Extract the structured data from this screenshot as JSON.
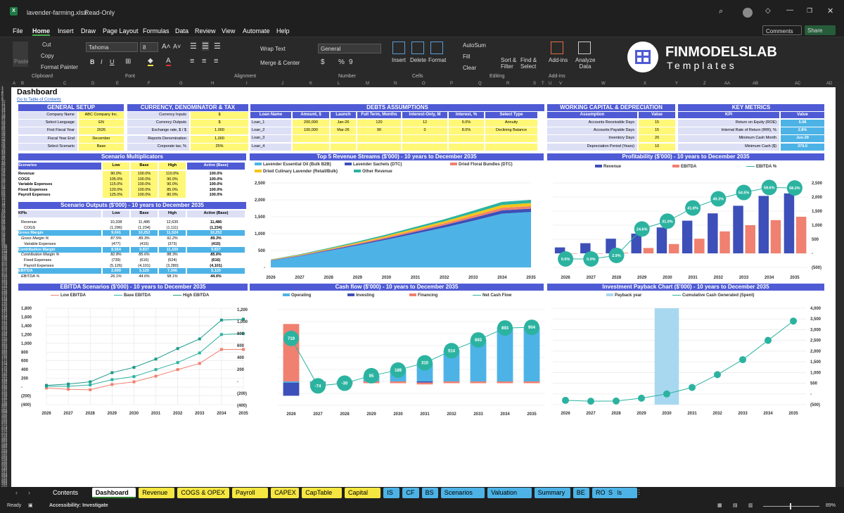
{
  "window": {
    "filename": "lavender-farming.xlsx",
    "mode": "Read-Only",
    "comments": "Comments",
    "share": "Share"
  },
  "menu": [
    "File",
    "Home",
    "Insert",
    "Draw",
    "Page Layout",
    "Formulas",
    "Data",
    "Review",
    "View",
    "Automate",
    "Help"
  ],
  "ribbon": {
    "cut": "Cut",
    "copy": "Copy",
    "format_painter": "Format Painter",
    "paste": "Paste",
    "clipboard": "Clipboard",
    "font_name": "Tahoma",
    "font_size": "8",
    "font": "Font",
    "wrap": "Wrap Text",
    "merge": "Merge & Center",
    "alignment": "Alignment",
    "number_format": "General",
    "number": "Number",
    "insert": "Insert",
    "delete": "Delete",
    "format": "Format",
    "cells": "Cells",
    "autosum": "AutoSum",
    "fill": "Fill",
    "clear": "Clear",
    "sort": "Sort & Filter",
    "find": "Find & Select",
    "editing": "Editing",
    "addins": "Add-ins",
    "addins_group": "Add-ins",
    "analyze": "Analyze Data",
    "brand": "FINMODELSLAB",
    "brand_sub": "Templates"
  },
  "columns": [
    "A",
    "B",
    "C",
    "D",
    "E",
    "F",
    "G",
    "H",
    "I",
    "J",
    "K",
    "L",
    "M",
    "N",
    "O",
    "P",
    "Q",
    "R",
    "S",
    "T",
    "U",
    "V",
    "W",
    "X",
    "Y",
    "Z",
    "AA",
    "AB",
    "AC",
    "AD"
  ],
  "sheet": {
    "title": "Dashboard",
    "toc_link": "Go to Table of Contents",
    "general": {
      "title": "GENERAL SETUP",
      "rows": [
        [
          "Company Name",
          "ABC Company Inc."
        ],
        [
          "Select Language",
          "EN"
        ],
        [
          "First Fiscal Year",
          "2026"
        ],
        [
          "Fiscal Year End",
          "December"
        ],
        [
          "Select Scenario",
          "Base"
        ]
      ]
    },
    "currency": {
      "title": "CURRENCY, DENOMINATOR & TAX",
      "rows": [
        [
          "Currency Inputs",
          "$"
        ],
        [
          "Currency Outputs",
          "$"
        ],
        [
          "Exchange rate, $ / $",
          "1.000"
        ],
        [
          "Reports Denomination",
          "1,000"
        ],
        [
          "Corporate tax, %",
          "25%"
        ]
      ]
    },
    "debts": {
      "title": "DEBTS ASSUMPTIONS",
      "headers": [
        "Loan Name",
        "Amount, $",
        "Launch",
        "Full Term, Months",
        "Interest-Only, M",
        "Interest, %",
        "Select Type"
      ],
      "rows": [
        [
          "Loan_1",
          "200,000",
          "Jan-26",
          "120",
          "12",
          "6.0%",
          "Annuity"
        ],
        [
          "Loan_2",
          "100,000",
          "Mar-26",
          "90",
          "0",
          "8.0%",
          "Declining Balance"
        ],
        [
          "Loan_3",
          "",
          "",
          "",
          "",
          "",
          ""
        ],
        [
          "Loan_4",
          "",
          "",
          "",
          "",
          "",
          ""
        ]
      ]
    },
    "wc": {
      "title": "WORKING CAPITAL & DEPRECIATION",
      "headers": [
        "Assumption",
        "Value"
      ],
      "rows": [
        [
          "Accounts Receivable Days",
          "15"
        ],
        [
          "Accounts Payable Days",
          "15"
        ],
        [
          "Inventory Days",
          "20"
        ],
        [
          "Depreciation Period (Years)",
          "10"
        ]
      ]
    },
    "kpi": {
      "title": "KEY METRICS",
      "headers": [
        "KPI",
        "Value"
      ],
      "rows": [
        [
          "Return on Equity (ROE)",
          "5.08"
        ],
        [
          "Internal Rate of Return (IRR), %",
          "2.8%"
        ],
        [
          "Minimum Cash Month",
          "Jun-29"
        ],
        [
          "Minimum Cash ($)",
          "379.0"
        ]
      ]
    },
    "multipliers": {
      "title": "Scenario Multiplicators",
      "headers": [
        "Scenarios",
        "Low",
        "Base",
        "High",
        "Active (Base)"
      ],
      "rows": [
        [
          "Revenue",
          "90.0%",
          "100.0%",
          "110.0%",
          "100.0%"
        ],
        [
          "COGS",
          "105.0%",
          "100.0%",
          "90.0%",
          "100.0%"
        ],
        [
          "Variable Expenses",
          "115.0%",
          "100.0%",
          "90.0%",
          "100.0%"
        ],
        [
          "Fixed Expenses",
          "120.0%",
          "100.0%",
          "85.0%",
          "100.0%"
        ],
        [
          "Payroll Expenses",
          "125.0%",
          "100.0%",
          "80.0%",
          "100.0%"
        ]
      ]
    },
    "outputs": {
      "title": "Scenario Outputs ($'000) - 10 years to December 2035",
      "headers": [
        "KPIs",
        "Low",
        "Base",
        "High",
        "Active (Base)"
      ],
      "rows": [
        [
          "Revenue",
          "10,338",
          "11,486",
          "12,635",
          "11,486"
        ],
        [
          "COGS",
          "(1,296)",
          "(1,234)",
          "(1,111)",
          "(1,234)"
        ],
        [
          "Gross Margin",
          "9,041",
          "10,252",
          "11,524",
          "10,252"
        ],
        [
          "Gross Margin %",
          "87.5%",
          "89.3%",
          "91.2%",
          "89.3%"
        ],
        [
          "Variable Expenses",
          "(477)",
          "(415)",
          "(373)",
          "(415)"
        ],
        [
          "Contribution Margin",
          "8,564",
          "9,837",
          "11,150",
          "9,837"
        ],
        [
          "Contribution Margin %",
          "82.8%",
          "85.6%",
          "88.3%",
          "85.6%"
        ],
        [
          "Fixed Expenses",
          "(739)",
          "(616)",
          "(524)",
          "(616)"
        ],
        [
          "Payroll Expenses",
          "(5,126)",
          "(4,101)",
          "(3,280)",
          "(4,101)"
        ],
        [
          "EBITDA",
          "2,699",
          "5,120",
          "7,346",
          "5,120"
        ],
        [
          "EBITDA %",
          "26.1%",
          "44.6%",
          "58.1%",
          "44.6%"
        ]
      ]
    }
  },
  "chart_data": [
    {
      "type": "area",
      "title": "Top 5 Revenue Streams ($'000) - 10 years to December 2035",
      "x": [
        "2026",
        "2027",
        "2028",
        "2029",
        "2030",
        "2031",
        "2032",
        "2033",
        "2034",
        "2035"
      ],
      "ylim": [
        0,
        2500
      ],
      "yticks": [
        "2,500",
        "2,000",
        "1,500",
        "1,000",
        "500",
        "-"
      ],
      "legend": [
        "Lavender Essential Oil (Bulk B2B)",
        "Lavender Sachets (DTC)",
        "Dried Floral Bundles (DTC)",
        "Dried Culinary Lavender (Retail/Bulk)",
        "Other Revenue"
      ],
      "colors": [
        "#4db3e6",
        "#3d4fb8",
        "#f08070",
        "#f5c518",
        "#2bb3a0"
      ],
      "series": [
        {
          "name": "Lavender Essential Oil (Bulk B2B)",
          "values": [
            200,
            330,
            490,
            650,
            820,
            1000,
            1180,
            1380,
            1590,
            1640
          ]
        },
        {
          "name": "Lavender Sachets (DTC)",
          "values": [
            10,
            15,
            20,
            30,
            40,
            55,
            70,
            85,
            100,
            100
          ]
        },
        {
          "name": "Dried Floral Bundles (DTC)",
          "values": [
            8,
            12,
            18,
            25,
            35,
            45,
            55,
            65,
            75,
            75
          ]
        },
        {
          "name": "Dried Culinary Lavender (Retail/Bulk)",
          "values": [
            10,
            15,
            22,
            30,
            40,
            50,
            60,
            75,
            85,
            90
          ]
        },
        {
          "name": "Other Revenue",
          "values": [
            10,
            15,
            22,
            30,
            40,
            50,
            60,
            75,
            90,
            95
          ]
        }
      ]
    },
    {
      "type": "bar",
      "title": "Profitability ($'000) - 10 years to December 2035",
      "x": [
        "2026",
        "2027",
        "2028",
        "2029",
        "2030",
        "2031",
        "2032",
        "2033",
        "2034",
        "2035"
      ],
      "ylim": [
        -500,
        2500
      ],
      "yticks": [
        "2,500",
        "2,000",
        "1,500",
        "1,000",
        "500",
        "-",
        "(500)"
      ],
      "legend": [
        "Revenue",
        "EBITDA",
        "EBITDA %"
      ],
      "colors": [
        "#3d4fb8",
        "#f08070",
        "#2bb3a0"
      ],
      "series": [
        {
          "name": "Revenue",
          "values": [
            210,
            360,
            520,
            700,
            920,
            1160,
            1420,
            1690,
            2040,
            2130
          ]
        },
        {
          "name": "EBITDA",
          "values": [
            0,
            0,
            20,
            190,
            330,
            520,
            780,
            1000,
            1180,
            1300
          ]
        },
        {
          "name": "EBITDA %",
          "values": [
            0.0,
            0.0,
            2.9,
            24.6,
            31.0,
            41.8,
            49.3,
            54.5,
            58.6,
            58.2
          ],
          "labels": [
            "0.0%",
            "0.0%",
            "2.9%",
            "24.6%",
            "31.0%",
            "41.8%",
            "49.3%",
            "54.5%",
            "58.6%",
            "58.2%"
          ]
        }
      ]
    },
    {
      "type": "line",
      "title": "EBITDA Scenarios ($'000) - 10 years to December 2035",
      "x": [
        "2026",
        "2027",
        "2028",
        "2029",
        "2030",
        "2031",
        "2032",
        "2033",
        "2034",
        "2035"
      ],
      "ylim": [
        -400,
        1800
      ],
      "yticks": [
        "1,800",
        "1,600",
        "1,400",
        "1,200",
        "1,000",
        "800",
        "600",
        "400",
        "200",
        "-",
        "(200)",
        "(400)"
      ],
      "legend": [
        "Low EBITDA",
        "Base EBITDA",
        "High EBITDA"
      ],
      "colors": [
        "#f08070",
        "#2bb3a0",
        "#1a9a8a"
      ],
      "series": [
        {
          "name": "Low EBITDA",
          "values": [
            -20,
            -50,
            -60,
            60,
            120,
            250,
            400,
            540,
            860,
            860
          ]
        },
        {
          "name": "Base EBITDA",
          "values": [
            20,
            20,
            50,
            170,
            240,
            400,
            560,
            780,
            1200,
            1220
          ]
        },
        {
          "name": "High EBITDA",
          "values": [
            40,
            70,
            120,
            330,
            450,
            640,
            880,
            1100,
            1530,
            1550
          ]
        }
      ]
    },
    {
      "type": "bar",
      "title": "Cash flow ($'000) - 10 years to December 2035",
      "x": [
        "2026",
        "2027",
        "2028",
        "2029",
        "2030",
        "2031",
        "2032",
        "2033",
        "2034",
        "2035"
      ],
      "ylim": [
        -400,
        1200
      ],
      "yticks": [
        "1,200",
        "1,000",
        "800",
        "600",
        "400",
        "200",
        "-",
        "(200)",
        "(400)"
      ],
      "legend": [
        "Operating",
        "Investing",
        "Financing",
        "Net Cash Flow"
      ],
      "colors": [
        "#4db3e6",
        "#3d4fb8",
        "#f08070",
        "#2bb3a0"
      ],
      "series": [
        {
          "name": "Operating",
          "values": [
            -20,
            -30,
            -20,
            100,
            200,
            310,
            520,
            700,
            900,
            910
          ]
        },
        {
          "name": "Investing",
          "values": [
            -220,
            0,
            0,
            0,
            0,
            -20,
            0,
            0,
            0,
            0
          ]
        },
        {
          "name": "Financing",
          "values": [
            960,
            -30,
            -30,
            -30,
            -30,
            -30,
            -30,
            -30,
            -30,
            -30
          ]
        },
        {
          "name": "Net Cash Flow",
          "values": [
            719,
            -74,
            -30,
            95,
            189,
            310,
            514,
            693,
            893,
            904
          ],
          "labels": [
            "719",
            "-74",
            "-30",
            "95",
            "189",
            "310",
            "514",
            "693",
            "893",
            "904"
          ]
        }
      ]
    },
    {
      "type": "line",
      "title": "Investment Payback Chart ($'000) - 10 years to December 2035",
      "x": [
        "2026",
        "2027",
        "2028",
        "2029",
        "2030",
        "2031",
        "2032",
        "2033",
        "2034",
        "2035"
      ],
      "ylim": [
        -500,
        4000
      ],
      "yticks": [
        "4,000",
        "3,500",
        "3,000",
        "2,500",
        "2,000",
        "1,500",
        "1,000",
        "500",
        "-",
        "(500)"
      ],
      "legend": [
        "Payback year",
        "Cumulative Cash Generated (Spent)"
      ],
      "colors": [
        "#a8d8f0",
        "#2bb3a0"
      ],
      "payback_year": "2030",
      "series": [
        {
          "name": "Cumulative Cash Generated (Spent)",
          "values": [
            -300,
            -340,
            -330,
            -200,
            0,
            300,
            900,
            1600,
            2500,
            3400
          ]
        }
      ]
    }
  ],
  "tabs": [
    {
      "label": "Contents",
      "color": "#1f1f1f",
      "fg": "#fff"
    },
    {
      "label": "Dashboard",
      "color": "#ffffff",
      "fg": "#000"
    },
    {
      "label": "Revenue",
      "color": "#f5e642",
      "fg": "#000"
    },
    {
      "label": "COGS & OPEX",
      "color": "#f5e642",
      "fg": "#000"
    },
    {
      "label": "Payroll",
      "color": "#f5e642",
      "fg": "#000"
    },
    {
      "label": "CAPEX",
      "color": "#f5e642",
      "fg": "#000"
    },
    {
      "label": "CapTable",
      "color": "#f5e642",
      "fg": "#000"
    },
    {
      "label": "Capital",
      "color": "#f5e642",
      "fg": "#000"
    },
    {
      "label": "IS",
      "color": "#4db3e6",
      "fg": "#000"
    },
    {
      "label": "CF",
      "color": "#4db3e6",
      "fg": "#000"
    },
    {
      "label": "BS",
      "color": "#4db3e6",
      "fg": "#000"
    },
    {
      "label": "Scenarios",
      "color": "#4db3e6",
      "fg": "#000"
    },
    {
      "label": "Valuation",
      "color": "#4db3e6",
      "fg": "#000"
    },
    {
      "label": "Summary",
      "color": "#4db3e6",
      "fg": "#000"
    },
    {
      "label": "BE",
      "color": "#4db3e6",
      "fg": "#000"
    },
    {
      "label": "ROIC",
      "color": "#4db3e6",
      "fg": "#000"
    },
    {
      "label": "Charts",
      "color": "#4db3e6",
      "fg": "#000"
    },
    {
      "label": "KPIs",
      "color": "#4db3e6",
      "fg": "#000"
    },
    {
      "label": "S",
      "color": "#4db3e6",
      "fg": "#000"
    }
  ],
  "status": {
    "ready": "Ready",
    "accessibility": "Accessibility: Investigate",
    "zoom": "89%"
  }
}
